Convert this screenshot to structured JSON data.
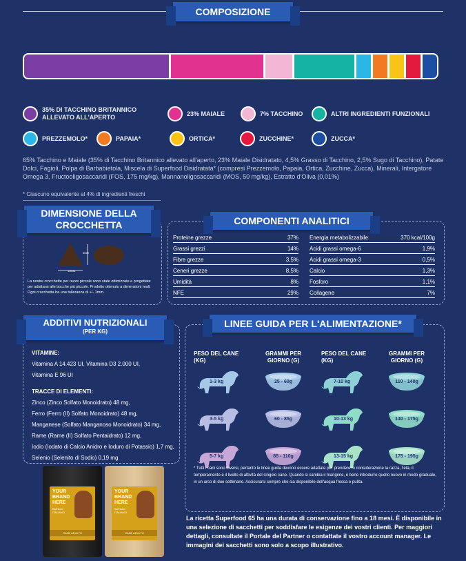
{
  "composition": {
    "title": "COMPOSIZIONE",
    "segments": [
      {
        "name": "tacchino-maiale",
        "fraction": 0.35,
        "color": "#7b3ea3"
      },
      {
        "name": "maiale",
        "fraction": 0.23,
        "color": "#e2328f"
      },
      {
        "name": "tacchino",
        "fraction": 0.07,
        "color": "#f3b7d3"
      },
      {
        "name": "altri",
        "fraction": 0.15,
        "color": "#14b3a3"
      },
      {
        "name": "prezzemolo",
        "fraction": 0.04,
        "color": "#2bb7e6"
      },
      {
        "name": "papaia",
        "fraction": 0.04,
        "color": "#f17a23"
      },
      {
        "name": "ortica",
        "fraction": 0.04,
        "color": "#f9c416"
      },
      {
        "name": "zucchine",
        "fraction": 0.04,
        "color": "#e31a3d"
      },
      {
        "name": "zucca",
        "fraction": 0.04,
        "color": "#1c4fa3"
      }
    ],
    "legend": [
      {
        "label": "35% DI TACCHINO BRITANNICO ALLEVATO ALL'APERTO",
        "color": "#7b3ea3"
      },
      {
        "label": "23% MAIALE",
        "color": "#e2328f"
      },
      {
        "label": "7% TACCHINO",
        "color": "#f3b7d3"
      },
      {
        "label": "ALTRI INGREDIENTI FUNZIONALI",
        "color": "#14b3a3"
      },
      {
        "label": "PREZZEMOLO*",
        "color": "#2bb7e6"
      },
      {
        "label": "PAPAIA*",
        "color": "#f17a23"
      },
      {
        "label": "ORTICA*",
        "color": "#f9c416"
      },
      {
        "label": "ZUCCHINE*",
        "color": "#e31a3d"
      },
      {
        "label": "ZUCCA*",
        "color": "#1c4fa3"
      }
    ],
    "ingredients": "65% Tacchino e Maiale (35% di Tacchino Britannico allevato all'aperto, 23% Maiale Disidratato, 4,5% Grasso di Tacchino, 2,5% Sugo di Tacchino), Patate Dolci, Fagioli, Polpa di Barbabietola, Miscela di Superfood Disidratata* (compresi Prezzemolo, Papaia, Ortica, Zucchine, Zucca), Minerali, Intergatore Omega 3, Fructooligosaccaridi (FOS, 175 mg/kg), Mannanoligosaccaridi (MOS, 50 mg/kg), Estratto d'Oliva (0,01%)",
    "footnote": "* Ciascuno equivalente al 4% di ingredienti freschi"
  },
  "kibble": {
    "title_line1": "DIMENSIONE DELLA",
    "title_line2": "CROCCHETTA",
    "dim1": "5MM",
    "dim2": "10MM",
    "note": "La nostre crocchette per razze piccole sono state ottimizzate e progettate per adattarsi alle bocche più piccole. Prodotto ottenuto a dimensioni reali. Ogni crocchetta ha una tolleranza di +/- 1mm."
  },
  "analytics": {
    "title": "COMPONENTI ANALITICI",
    "left": [
      {
        "label": "Proteine grezze",
        "value": "37%"
      },
      {
        "label": "Grassi grezzi",
        "value": "14%"
      },
      {
        "label": "Fibre grezze",
        "value": "3,5%"
      },
      {
        "label": "Ceneri grezze",
        "value": "8,5%"
      },
      {
        "label": "Umidità",
        "value": "8%"
      },
      {
        "label": "NFE",
        "value": "29%"
      }
    ],
    "right": [
      {
        "label": "Energia metabolizzabile",
        "value": "370 kcal/100g"
      },
      {
        "label": "Acidi grassi omega-6",
        "value": "1,9%"
      },
      {
        "label": "Acidi grassi omega-3",
        "value": "0,5%"
      },
      {
        "label": "Calcio",
        "value": "1,3%"
      },
      {
        "label": "Fosforo",
        "value": "1,1%"
      },
      {
        "label": "Collagene",
        "value": "7%"
      }
    ]
  },
  "additives": {
    "title": "ADDITIVI NUTRIZIONALI",
    "subtitle": "(PER KG)",
    "vit_head": "VITAMINE:",
    "vit1": "Vitamina A 14.423 UI, Vitamina D3 2.000 UI,",
    "vit2": "Vitamina E 96 UI",
    "tr_head": "TRACCE DI ELEMENTI:",
    "trace": [
      "Zinco (Zinco Solfato Monoidrato) 48 mg,",
      "Ferro (Ferro (II) Solfato Monoidrato) 48 mg,",
      "Manganese (Solfato Manganoso Monoidrato) 34 mg,",
      "Rame (Rame (II) Solfato Pentaidrato) 12 mg,",
      "Iodio (Iodato di Calcio Anidro e Ioduro di Potassio) 1,7 mg,",
      "Selenio (Selenito di Sodio) 0,19 mg"
    ]
  },
  "feeding": {
    "title": "LINEE GUIDA PER L'ALIMENTAZIONE*",
    "head_weight": "PESO DEL CANE (KG)",
    "head_grams": "GRAMMI PER GIORNO (G)",
    "rows_left": [
      {
        "weight": "1-3 kg",
        "grams": "25 - 60g",
        "dog": "#a6c9e8",
        "bowl": "#a6c9e8"
      },
      {
        "weight": "3-5 kg",
        "grams": "60 - 85g",
        "dog": "#b7bde3",
        "bowl": "#b7bde3"
      },
      {
        "weight": "5-7 kg",
        "grams": "85 - 110g",
        "dog": "#c7a7d8",
        "bowl": "#c7a7d8"
      }
    ],
    "rows_right": [
      {
        "weight": "7-10 kg",
        "grams": "110 - 140g",
        "dog": "#8dd0d6",
        "bowl": "#8dd0d6"
      },
      {
        "weight": "10-13 kg",
        "grams": "140 - 175g",
        "dog": "#8fdcc8",
        "bowl": "#8fdcc8"
      },
      {
        "weight": "13-15 kg",
        "grams": "175 - 195g",
        "dog": "#a8e3c8",
        "bowl": "#a8e3c8"
      }
    ],
    "note": "* Tutti i cani sono diversi, pertanto le linee guida devono essere adattate per prendere in considerazione la razza, l'età, il temperamento e il livello di attività del singolo cane. Quando si cambia il mangime, è bene introdurre quello nuovo in modo graduale, in un arco di due settimane. Assicurarsi sempre che sia disponibile dell'acqua fresca e pulita."
  },
  "bags": {
    "brand": "YOUR BRAND HERE",
    "sub": "BUFALO ITALIANO",
    "label": "CANE ADULTO"
  },
  "bottom": "La ricetta Superfood 65 ha una durata di conservazione fino a 18 mesi. È disponibile in una selezione di sacchetti per soddisfare le esigenze dei vostri clienti. Per maggiori dettagli, consultate il Portale del Partner o contattate il vostro account manager. Le immagini dei sacchetti sono solo a scopo illustrativo."
}
